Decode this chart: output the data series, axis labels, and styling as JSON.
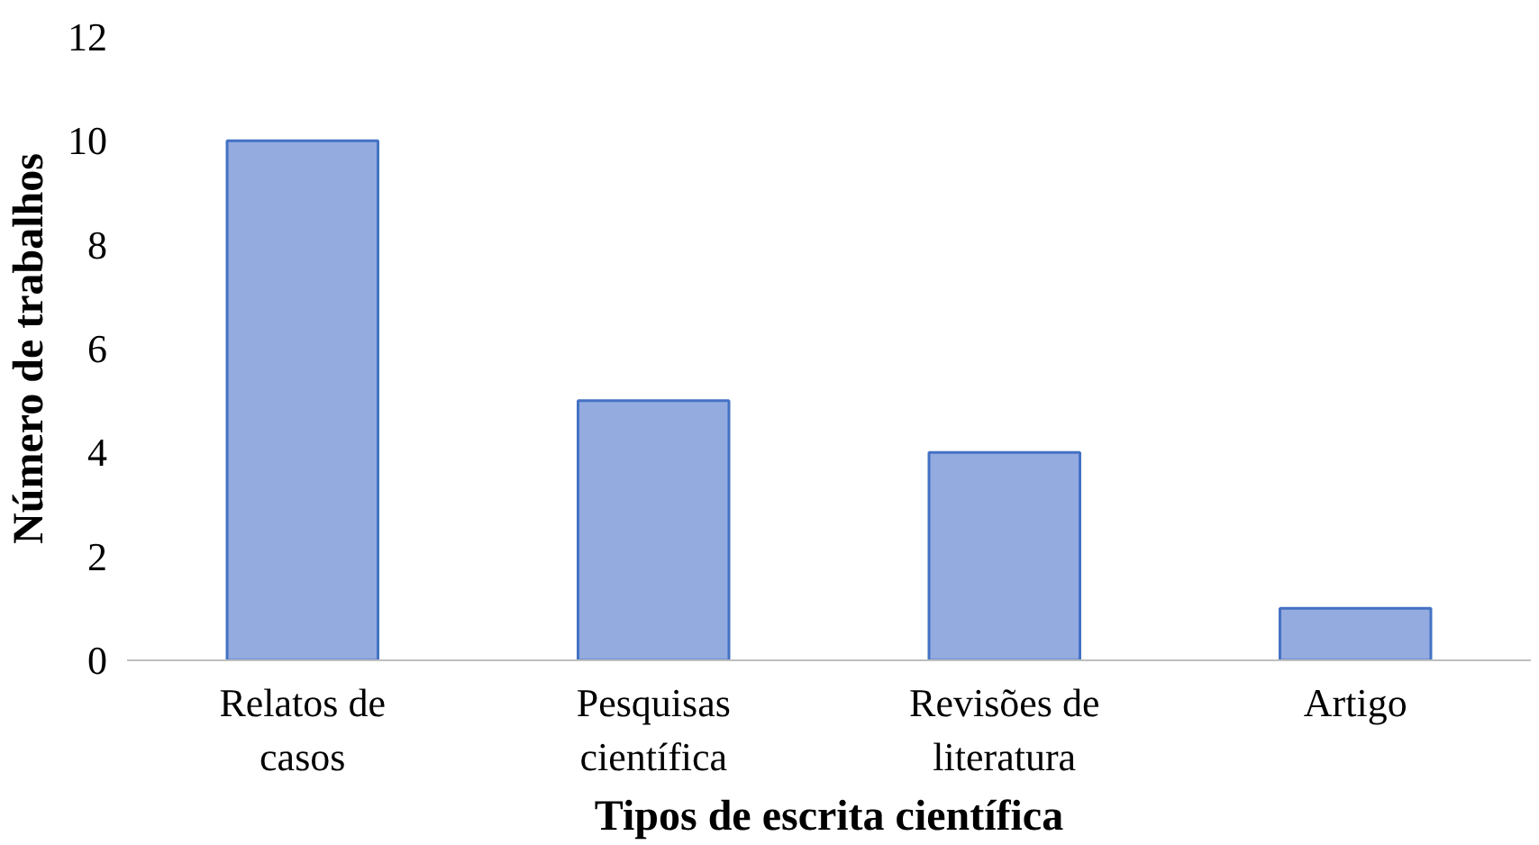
{
  "chart_data": {
    "type": "bar",
    "xlabel": "Tipos de escrita científica",
    "ylabel": "Número de trabalhos",
    "categories": [
      "Relatos de casos",
      "Pesquisas científica",
      "Revisões de literatura",
      "Artigo"
    ],
    "values": [
      10,
      5,
      4,
      1
    ],
    "color": "#94abe0",
    "ylim": [
      0,
      12
    ],
    "yticks": [
      0,
      2,
      4,
      6,
      8,
      10,
      12
    ],
    "grid": false
  }
}
